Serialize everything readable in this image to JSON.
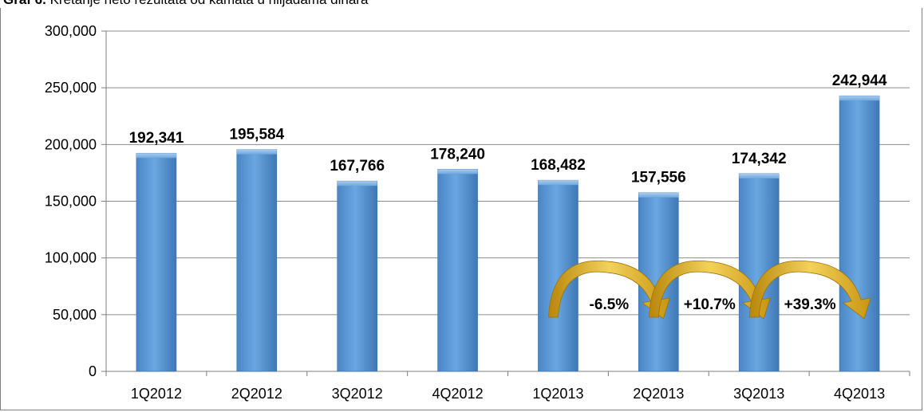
{
  "caption": {
    "label": "Graf 6.",
    "text": "Kretanje neto rezultata od kamata u hiljadama dinara"
  },
  "chart_data": {
    "type": "bar",
    "categories": [
      "1Q2012",
      "2Q2012",
      "3Q2012",
      "4Q2012",
      "1Q2013",
      "2Q2013",
      "3Q2013",
      "4Q2013"
    ],
    "values": [
      192341,
      195584,
      167766,
      178240,
      168482,
      157556,
      174342,
      242944
    ],
    "data_labels": [
      "192,341",
      "195,584",
      "167,766",
      "178,240",
      "168,482",
      "157,556",
      "174,342",
      "242,944"
    ],
    "yticks": [
      "0",
      "50,000",
      "100,000",
      "150,000",
      "200,000",
      "250,000",
      "300,000"
    ],
    "ylim": [
      0,
      300000
    ],
    "grid": true,
    "bar_color": "#5b9bd5",
    "annotations": [
      {
        "text": "-6.5%",
        "from": "1Q2013",
        "to": "2Q2013"
      },
      {
        "text": "+10.7%",
        "from": "2Q2013",
        "to": "3Q2013"
      },
      {
        "text": "+39.3%",
        "from": "3Q2013",
        "to": "4Q2013"
      }
    ],
    "arrow_color": "#d4a017"
  }
}
